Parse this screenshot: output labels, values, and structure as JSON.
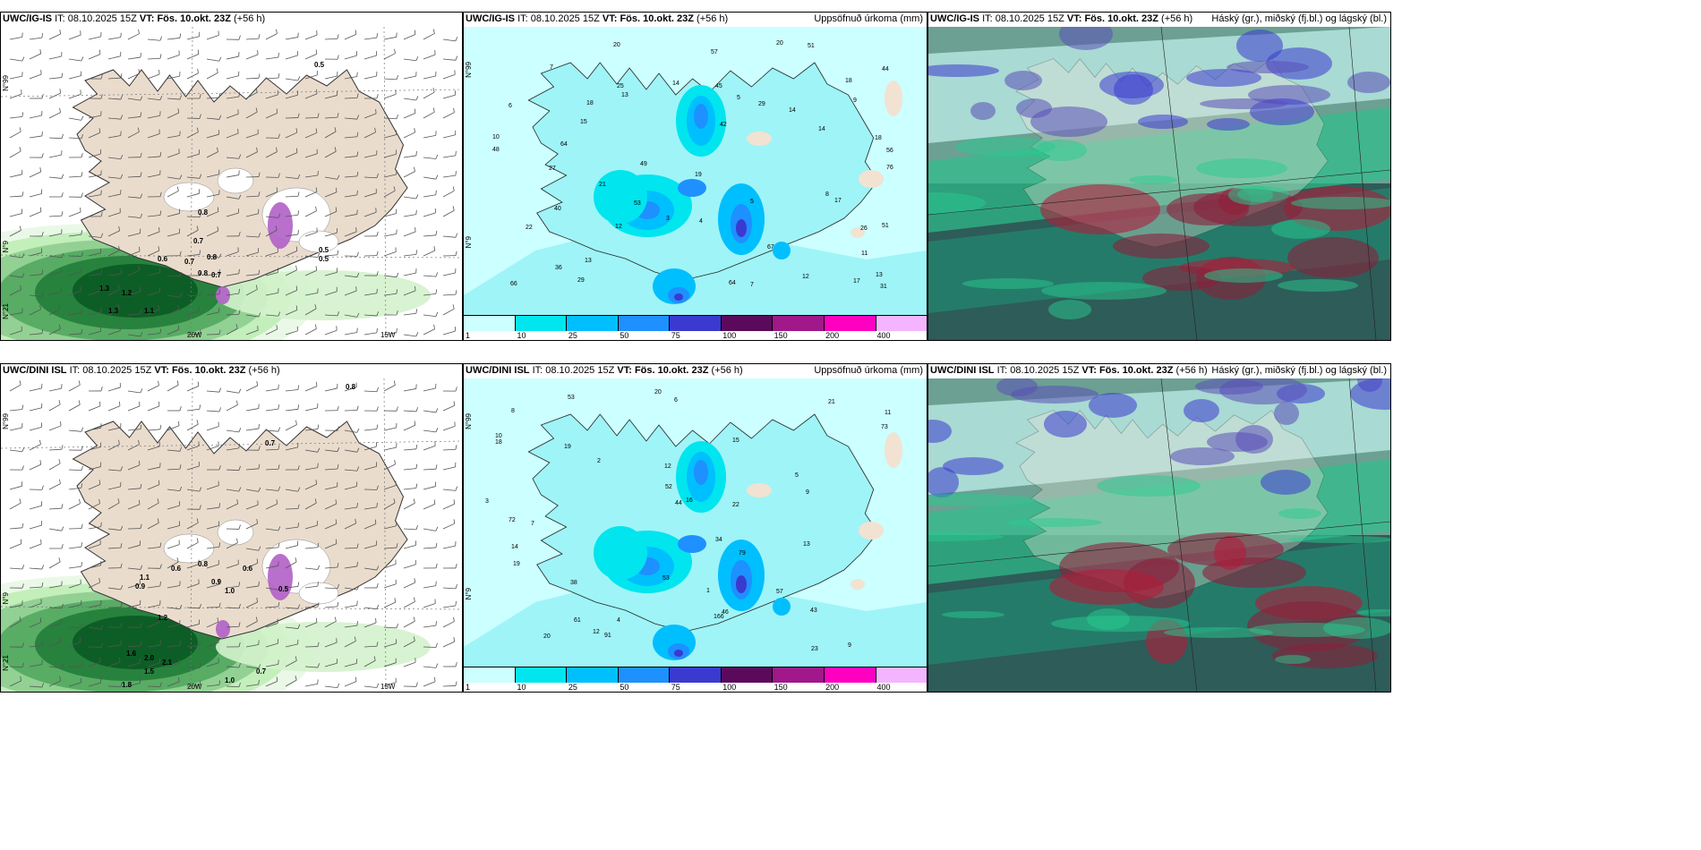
{
  "panels": [
    {
      "id": "p1",
      "kind": "wind",
      "model": "UWC/IG-IS",
      "it_label": "IT:",
      "it": "08.10.2025 15Z",
      "vt_label": "VT:",
      "vt": "Fös. 10.okt. 23Z",
      "lead": "(+56 h)",
      "right": ""
    },
    {
      "id": "p2",
      "kind": "precip",
      "model": "UWC/IG-IS",
      "it_label": "IT:",
      "it": "08.10.2025 15Z",
      "vt_label": "VT:",
      "vt": "Fös. 10.okt. 23Z",
      "lead": "(+56 h)",
      "right": "Uppsöfnuð úrkoma (mm)"
    },
    {
      "id": "p3",
      "kind": "cloud",
      "model": "UWC/IG-IS",
      "it_label": "IT:",
      "it": "08.10.2025 15Z",
      "vt_label": "VT:",
      "vt": "Fös. 10.okt. 23Z",
      "lead": "(+56 h)",
      "right": "Háský (gr.), miðský (fj.bl.) og lágský (bl.)"
    },
    {
      "id": "p4",
      "kind": "wind",
      "model": "UWC/DINI ISL",
      "it_label": "IT:",
      "it": "08.10.2025 15Z",
      "vt_label": "VT:",
      "vt": "Fös. 10.okt. 23Z",
      "lead": "(+56 h)",
      "right": ""
    },
    {
      "id": "p5",
      "kind": "precip",
      "model": "UWC/DINI ISL",
      "it_label": "IT:",
      "it": "08.10.2025 15Z",
      "vt_label": "VT:",
      "vt": "Fös. 10.okt. 23Z",
      "lead": "(+56 h)",
      "right": "Uppsöfnuð úrkoma (mm)"
    },
    {
      "id": "p6",
      "kind": "cloud",
      "model": "UWC/DINI ISL",
      "it_label": "IT:",
      "it": "08.10.2025 15Z",
      "vt_label": "VT:",
      "vt": "Fös. 10.okt. 23Z",
      "lead": "(+56 h)",
      "right": "Háský (gr.), miðský (fj.bl.) og lágský (bl.)"
    }
  ],
  "axis_labels": {
    "lat_top": "N°99",
    "lat_bottom": "N°9",
    "lat_corner": "N°21",
    "lon_20w": "20W",
    "lon_15w": "15W"
  },
  "colorbar": {
    "levels": [
      "1",
      "10",
      "25",
      "50",
      "75",
      "100",
      "150",
      "200",
      "400"
    ],
    "colors": [
      "#ccffff",
      "#00e5ee",
      "#00bfff",
      "#1e90ff",
      "#3a3ad0",
      "#5b0a5b",
      "#a0188a",
      "#ff00c0",
      "#f5b4ff"
    ]
  },
  "precip_labels_top": [
    "13",
    "18",
    "29",
    "56",
    "49",
    "51",
    "53",
    "20",
    "26",
    "18",
    "15",
    "17",
    "14",
    "12",
    "22",
    "19",
    "21",
    "10",
    "20",
    "14",
    "13",
    "45",
    "36",
    "40",
    "42",
    "51",
    "66",
    "67",
    "64",
    "44",
    "29",
    "31",
    "27",
    "57",
    "64",
    "48",
    "76",
    "5",
    "9",
    "8",
    "7",
    "6",
    "3",
    "4",
    "11",
    "7",
    "5",
    "14",
    "25",
    "13",
    "17",
    "18",
    "12"
  ],
  "precip_labels_bottom": [
    "3",
    "6",
    "5",
    "11",
    "10",
    "9",
    "7",
    "15",
    "12",
    "21",
    "16",
    "13",
    "20",
    "18",
    "19",
    "38",
    "46",
    "72",
    "34",
    "53",
    "57",
    "43",
    "73",
    "52",
    "61",
    "44",
    "79",
    "53",
    "91",
    "166",
    "14",
    "23",
    "22",
    "20",
    "12",
    "19",
    "9",
    "8",
    "4",
    "2",
    "1"
  ],
  "wind_labels_top": [
    "0.5",
    "0.8",
    "0.7",
    "0.6",
    "0.7",
    "0.8",
    "0.7",
    "0.5",
    "0.5",
    "1.3",
    "1.2",
    "0.8",
    "1.1",
    "1.3"
  ],
  "wind_labels_bottom": [
    "0.8",
    "0.7",
    "1.1",
    "0.9",
    "0.6",
    "0.8",
    "0.9",
    "1.0",
    "1.2",
    "1.6",
    "2.0",
    "2.1",
    "1.8",
    "1.5",
    "0.7",
    "1.0",
    "0.6",
    "0.5"
  ]
}
